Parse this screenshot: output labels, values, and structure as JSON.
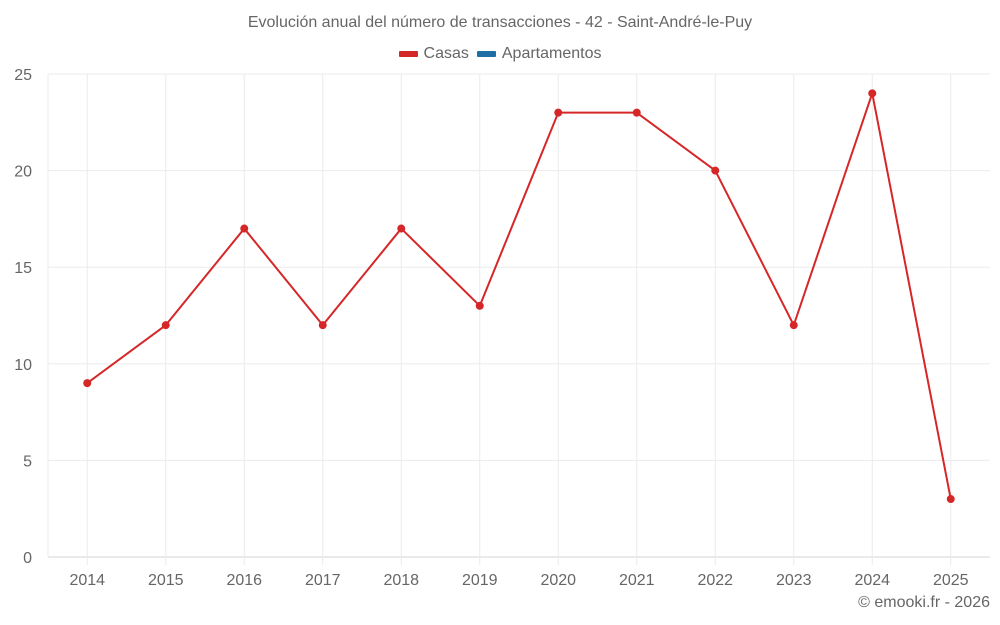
{
  "title": "Evolución anual del número de transacciones - 42 - Saint-André-le-Puy",
  "legend": [
    {
      "label": "Casas",
      "color": "#d62728"
    },
    {
      "label": "Apartamentos",
      "color": "#1f6fa5"
    }
  ],
  "footer": "© emooki.fr - 2026",
  "chart_data": {
    "type": "line",
    "title": "Evolución anual del número de transacciones - 42 - Saint-André-le-Puy",
    "xlabel": "",
    "ylabel": "",
    "categories": [
      "2014",
      "2015",
      "2016",
      "2017",
      "2018",
      "2019",
      "2020",
      "2021",
      "2022",
      "2023",
      "2024",
      "2025"
    ],
    "series": [
      {
        "name": "Casas",
        "color": "#d62728",
        "values": [
          9,
          12,
          17,
          12,
          17,
          13,
          23,
          23,
          20,
          12,
          24,
          3
        ]
      },
      {
        "name": "Apartamentos",
        "color": "#1f6fa5",
        "values": []
      }
    ],
    "ylim": [
      0,
      25
    ],
    "yticks": [
      0,
      5,
      10,
      15,
      20,
      25
    ],
    "grid": true,
    "legend_position": "top"
  }
}
